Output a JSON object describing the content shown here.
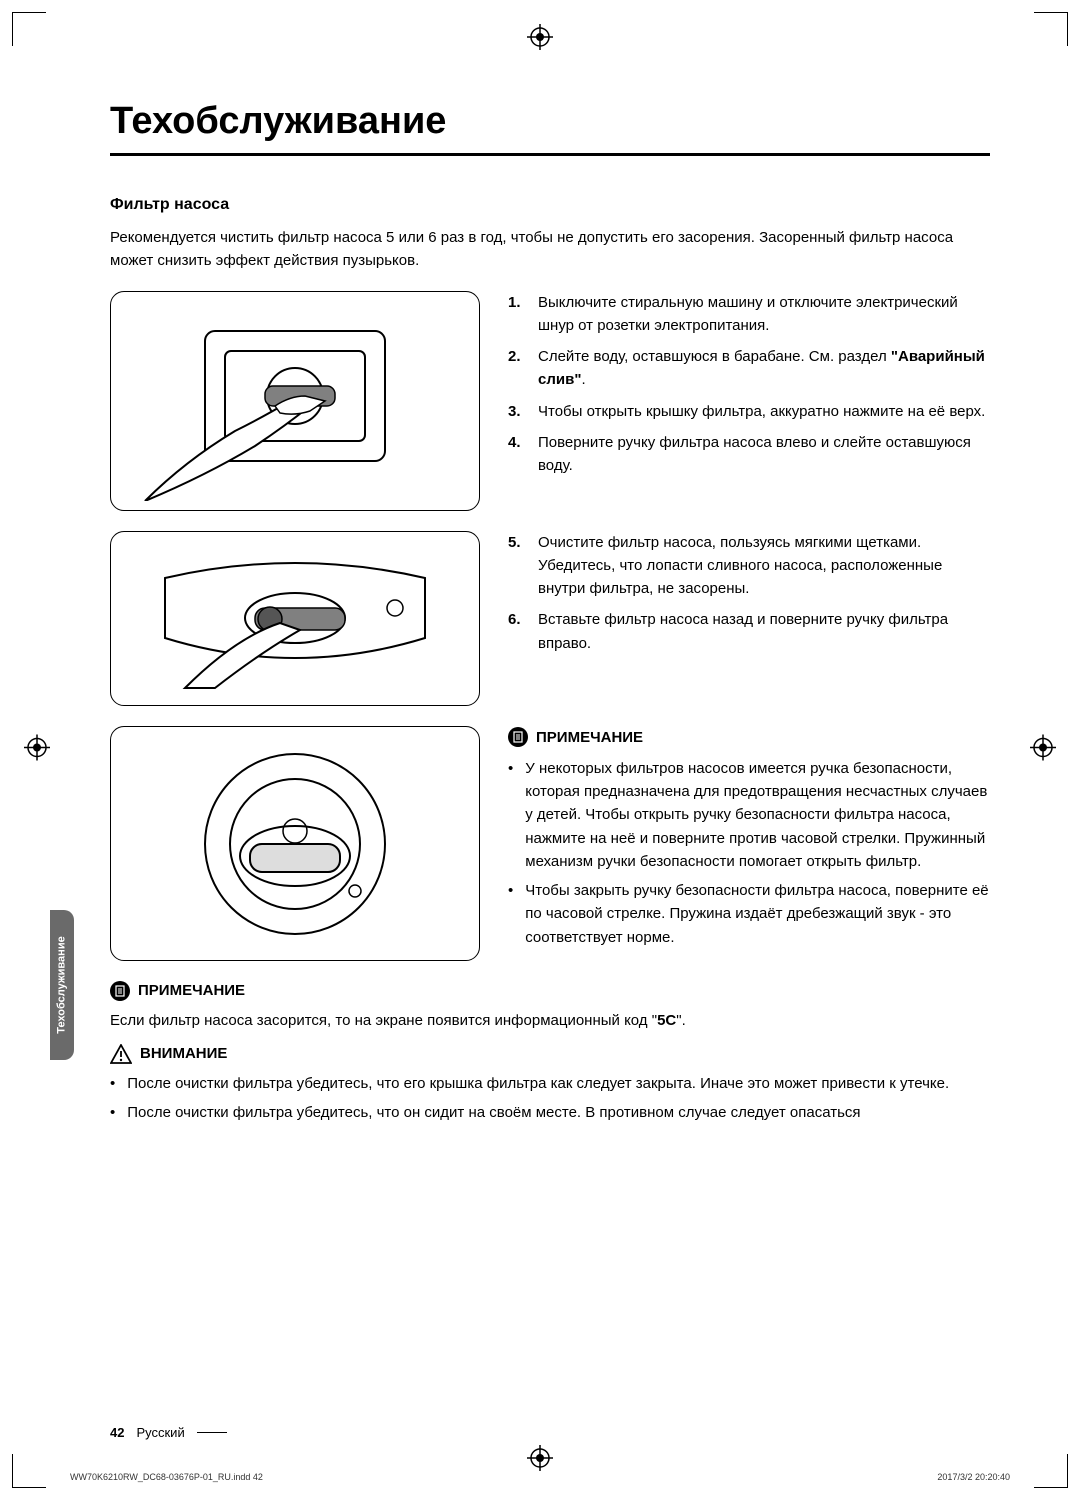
{
  "print_marks": {
    "crop_color": "#000000"
  },
  "heading": "Техобслуживание",
  "subheading": "Фильтр насоса",
  "intro": "Рекомендуется чистить фильтр насоса 5 или 6 раз в год, чтобы не допустить его засорения. Засоренный фильтр насоса может снизить эффект действия пузырьков.",
  "steps_a": [
    {
      "n": "1.",
      "t": "Выключите стиральную машину и отключите электрический шнур от розетки электропитания."
    },
    {
      "n": "2.",
      "t_pre": "Слейте воду, оставшуюся в барабане. См. раздел ",
      "t_bold": "\"Аварийный слив\"",
      "t_post": "."
    },
    {
      "n": "3.",
      "t": "Чтобы открыть крышку фильтра, аккуратно нажмите на её верх."
    },
    {
      "n": "4.",
      "t": "Поверните ручку фильтра насоса влево и слейте оставшуюся воду."
    }
  ],
  "steps_b": [
    {
      "n": "5.",
      "t": "Очистите фильтр насоса, пользуясь мягкими щетками. Убедитесь, что лопасти сливного насоса, расположенные внутри фильтра, не засорены."
    },
    {
      "n": "6.",
      "t": "Вставьте фильтр насоса назад и поверните ручку фильтра вправо."
    }
  ],
  "note1_title": "ПРИМЕЧАНИЕ",
  "note1_items": [
    "У некоторых фильтров насосов имеется ручка безопасности, которая предназначена для предотвращения несчастных случаев у детей. Чтобы открыть ручку безопасности фильтра насоса, нажмите на неё и поверните против часовой стрелки. Пружинный механизм ручки безопасности помогает открыть фильтр.",
    "Чтобы закрыть ручку безопасности фильтра насоса, поверните её по часовой стрелке. Пружина издаёт дребезжащий звук - это соответствует норме."
  ],
  "note2_title": "ПРИМЕЧАНИЕ",
  "note2_text_pre": "Если фильтр насоса засорится, то на экране появится информационный код \"",
  "note2_code": "5C",
  "note2_text_post": "\".",
  "caution_title": "ВНИМАНИЕ",
  "caution_items": [
    "После очистки фильтра убедитесь, что его крышка фильтра как следует закрыта. Иначе это может привести к утечке.",
    "После очистки фильтра убедитесь, что он сидит на своём месте. В противном случае следует опасаться"
  ],
  "sidetab": "Техобслуживание",
  "footer": {
    "page": "42",
    "lang": "Русский"
  },
  "tiny": {
    "left": "WW70K6210RW_DC68-03676P-01_RU.indd   42",
    "right": "2017/3/2   20:20:40"
  },
  "colors": {
    "text": "#000000",
    "sidetab_bg": "#6a6a6a",
    "sidetab_text": "#ffffff",
    "border": "#000000"
  }
}
